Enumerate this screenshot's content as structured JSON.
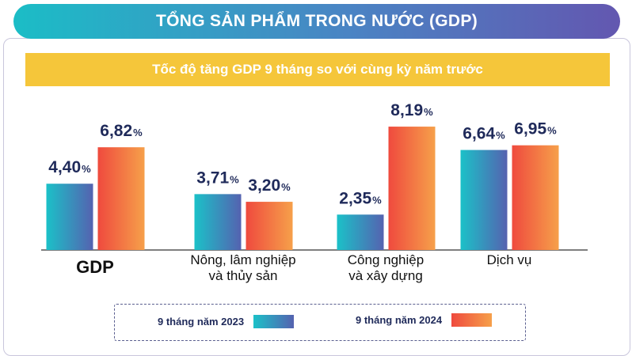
{
  "header": {
    "title": "TỔNG SẢN PHẨM TRONG NƯỚC (GDP)"
  },
  "chart_data": {
    "type": "bar",
    "title": "Tốc độ tăng GDP 9 tháng so với cùng kỳ năm trước",
    "categories": [
      [
        "GDP"
      ],
      [
        "Nông, lâm nghiệp",
        "và thủy sản"
      ],
      [
        "Công nghiệp",
        "và xây dựng"
      ],
      [
        "Dịch vụ"
      ]
    ],
    "series": [
      {
        "name": "9 tháng năm 2023",
        "values": [
          4.4,
          3.71,
          2.35,
          6.64
        ],
        "labels": [
          "4,40",
          "3,71",
          "2,35",
          "6,64"
        ]
      },
      {
        "name": "9 tháng năm 2024",
        "values": [
          6.82,
          3.2,
          8.19,
          6.95
        ],
        "labels": [
          "6,82",
          "3,20",
          "8,19",
          "6,95"
        ]
      }
    ],
    "unit": "%",
    "ylim": [
      0,
      9
    ],
    "grid": false,
    "legend": "bottom",
    "colors": {
      "series_2023": [
        "#1bc1c8",
        "#5562b0"
      ],
      "series_2024": [
        "#ef4a3e",
        "#f6a04a"
      ],
      "label": "#1f2a5a",
      "axis": "#333333"
    }
  }
}
